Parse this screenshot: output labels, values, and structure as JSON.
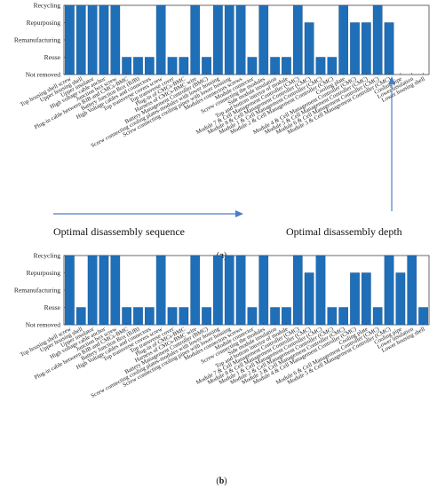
{
  "chart_data": [
    {
      "type": "bar",
      "panel_label": "a",
      "y_categories": [
        "Not removed",
        "Reuse",
        "Remanufacturing",
        "Repurposing",
        "Recycling"
      ],
      "categories": [
        "Top housing shell screw",
        "Upper housing shell",
        "Upper insulator",
        "High voltage cable anchor",
        "Junction box screw",
        "Plug-in cable between BJB and CMCs-BMC",
        "Battery Junction Box (BJB)",
        "High Voltage cables and connectors",
        "Top transverse covers screw",
        "Top transverse cover",
        "Plug-in of CMCs-BMC",
        "Harness of CMCs-BMC wire",
        "Battery Management Controller (BMC)",
        "Screw connecting cooling plates-modules with lower housing",
        "Screw connecting cooling pipes with lower housing",
        "Modules connectors screws",
        "Module connector",
        "Screw connecting the modules",
        "Side module insulation",
        "Top and bottom interior of module",
        "Module 7 & Cell Management Controller (CMC)",
        "Module 8 & Cell Management Controller (CMC)",
        "Module 1 & Cell Management Controller (CMC)",
        "Module 2 & Cell Management Controller (CMC)",
        "Cooling plate",
        "Module 4 & Cell Management Controller (CMC)",
        "Module 5 & Cell Management Controller (CMC)",
        "Module 6 & Cell Management Controller (CMC)",
        "Module 3 & Cell Management Controller (CMC)",
        "Cooling pipe",
        "Lower insulation",
        "Lower housing shell"
      ],
      "values": [
        4,
        4,
        4,
        4,
        4,
        1,
        1,
        1,
        4,
        1,
        1,
        4,
        1,
        4,
        4,
        4,
        1,
        4,
        1,
        1,
        4,
        3,
        1,
        1,
        4,
        3,
        3,
        4,
        3,
        0,
        0,
        0
      ],
      "annotations": {
        "sequence_label": "Optimal disassembly sequence",
        "depth_label": "Optimal disassembly depth"
      }
    },
    {
      "type": "bar",
      "panel_label": "b",
      "y_categories": [
        "Not removed",
        "Reuse",
        "Remanufacturing",
        "Repurposing",
        "Recycling"
      ],
      "categories": [
        "Top housing shell screw",
        "Upper housing shell",
        "Upper insulator",
        "High voltage cable anchor",
        "Junction box screw",
        "Plug-in cable between BJB and CMCs-BMC",
        "Battery Junction Box (BJB)",
        "High Voltage cables and connectors",
        "Top transverse covers screw",
        "Top transverse cover",
        "Plug-in of CMCs-BMC",
        "Harness of CMCs-BMC wire",
        "Battery Management Controller (BMC)",
        "Screw connecting cooling plates-modules with lower housing",
        "Screw connecting cooling pipes with lower housing",
        "Modules connectors screws",
        "Module connector",
        "Screw connecting the modules",
        "Side module insulation",
        "Top and bottom interior of module",
        "Module 7 & Cell Management Controller (CMC)",
        "Module 8 & Cell Management Controller (CMC)",
        "Module 1 & Cell Management Controller (CMC)",
        "Module 2 & Cell Management Controller (CMC)",
        "Module 3 & Cell Management Controller (CMC)",
        "Module 4 & Cell Management Controller (CMC)",
        "Cooling plate",
        "Module 6 & Cell Management Controller (CMC)",
        "Module 5 & Cell Management Controller (CMC)",
        "Cooling pipe",
        "Lower insulation",
        "Lower housing shell"
      ],
      "values": [
        4,
        1,
        4,
        4,
        4,
        1,
        1,
        1,
        4,
        1,
        1,
        4,
        1,
        4,
        4,
        4,
        1,
        4,
        1,
        1,
        4,
        3,
        4,
        1,
        1,
        3,
        3,
        1,
        4,
        3,
        4,
        1
      ],
      "annotations": {}
    }
  ],
  "colors": {
    "bar": "#1f6fb8",
    "arrow": "#4a7dc4"
  }
}
